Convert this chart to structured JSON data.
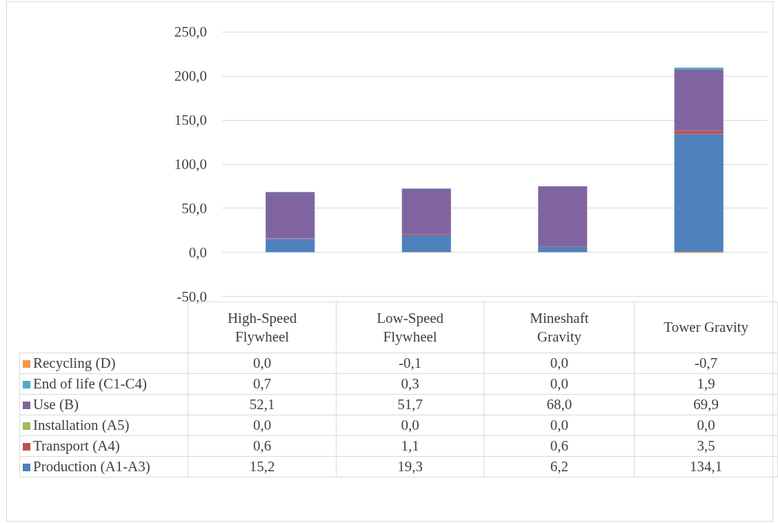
{
  "chart_data": {
    "type": "bar",
    "stacked": true,
    "categories": [
      "High-Speed Flywheel",
      "Low-Speed Flywheel",
      "Mineshaft Gravity",
      "Tower Gravity"
    ],
    "series": [
      {
        "name": "Production (A1-A3)",
        "color": "#4f81bd",
        "values": [
          15.2,
          19.3,
          6.2,
          134.1
        ],
        "value_labels": [
          "15,2",
          "19,3",
          "6,2",
          "134,1"
        ]
      },
      {
        "name": "Transport (A4)",
        "color": "#c0504d",
        "values": [
          0.6,
          1.1,
          0.6,
          3.5
        ],
        "value_labels": [
          "0,6",
          "1,1",
          "0,6",
          "3,5"
        ]
      },
      {
        "name": "Installation (A5)",
        "color": "#9bbb59",
        "values": [
          0.0,
          0.0,
          0.0,
          0.0
        ],
        "value_labels": [
          "0,0",
          "0,0",
          "0,0",
          "0,0"
        ]
      },
      {
        "name": "Use (B)",
        "color": "#8064a2",
        "values": [
          52.1,
          51.7,
          68.0,
          69.9
        ],
        "value_labels": [
          "52,1",
          "51,7",
          "68,0",
          "69,9"
        ]
      },
      {
        "name": "End of life (C1-C4)",
        "color": "#4bacc6",
        "values": [
          0.7,
          0.3,
          0.0,
          1.9
        ],
        "value_labels": [
          "0,7",
          "0,3",
          "0,0",
          "1,9"
        ]
      },
      {
        "name": "Recycling (D)",
        "color": "#f79646",
        "values": [
          0.0,
          -0.1,
          0.0,
          -0.7
        ],
        "value_labels": [
          "0,0",
          "-0,1",
          "0,0",
          "-0,7"
        ]
      }
    ],
    "ylim": [
      -50,
      250
    ],
    "yticks": [
      {
        "value": -50,
        "label": "-50,0"
      },
      {
        "value": 0,
        "label": "0,0"
      },
      {
        "value": 50,
        "label": "50,0"
      },
      {
        "value": 100,
        "label": "100,0"
      },
      {
        "value": 150,
        "label": "150,0"
      },
      {
        "value": 200,
        "label": "200,0"
      },
      {
        "value": 250,
        "label": "250,0"
      }
    ],
    "grid": "y",
    "legend": "bottom left"
  }
}
